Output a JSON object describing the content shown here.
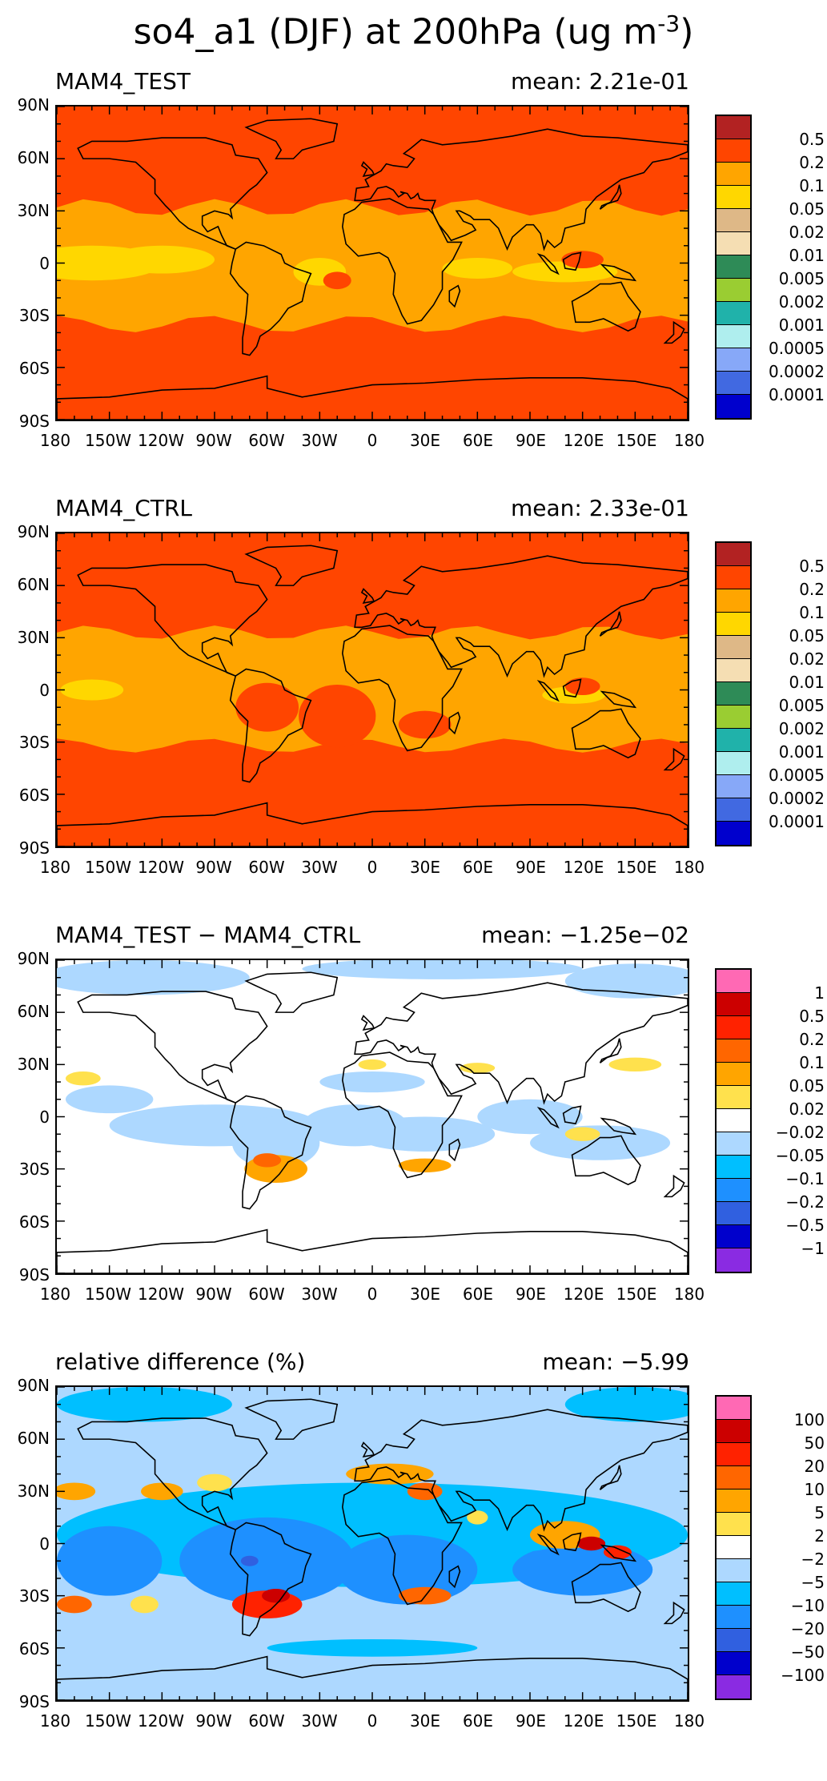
{
  "title_prefix": "so4_a1 (DJF) at 200hPa (ug m",
  "title_exponent": "-3",
  "title_suffix": ")",
  "chart_data": [
    {
      "type": "heatmap",
      "title": "MAM4_TEST",
      "mean_text": "mean: 2.21e-01",
      "ytick_labels": [
        "90N",
        "60N",
        "30N",
        "0",
        "30S",
        "60S",
        "90S"
      ],
      "xtick_labels": [
        "180",
        "150W",
        "120W",
        "90W",
        "60W",
        "30W",
        "0",
        "30E",
        "60E",
        "90E",
        "120E",
        "150E",
        "180"
      ],
      "ylim": [
        -90,
        90
      ],
      "xlim": [
        -180,
        180
      ],
      "colorbar_labels": [
        "0.5",
        "0.2",
        "0.1",
        "0.05",
        "0.02",
        "0.01",
        "0.005",
        "0.002",
        "0.001",
        "0.0005",
        "0.0002",
        "0.0001"
      ],
      "colorbar_colors": [
        "#b22222",
        "#ff4500",
        "#ffa500",
        "#ffd700",
        "#deb887",
        "#f5deb3",
        "#2e8b57",
        "#9acd32",
        "#20b2aa",
        "#afeeee",
        "#87a8f8",
        "#4169e1",
        "#0000cd"
      ]
    },
    {
      "type": "heatmap",
      "title": "MAM4_CTRL",
      "mean_text": "mean: 2.33e-01",
      "ytick_labels": [
        "90N",
        "60N",
        "30N",
        "0",
        "30S",
        "60S",
        "90S"
      ],
      "xtick_labels": [
        "180",
        "150W",
        "120W",
        "90W",
        "60W",
        "30W",
        "0",
        "30E",
        "60E",
        "90E",
        "120E",
        "150E",
        "180"
      ],
      "ylim": [
        -90,
        90
      ],
      "xlim": [
        -180,
        180
      ],
      "colorbar_labels": [
        "0.5",
        "0.2",
        "0.1",
        "0.05",
        "0.02",
        "0.01",
        "0.005",
        "0.002",
        "0.001",
        "0.0005",
        "0.0002",
        "0.0001"
      ],
      "colorbar_colors": [
        "#b22222",
        "#ff4500",
        "#ffa500",
        "#ffd700",
        "#deb887",
        "#f5deb3",
        "#2e8b57",
        "#9acd32",
        "#20b2aa",
        "#afeeee",
        "#87a8f8",
        "#4169e1",
        "#0000cd"
      ]
    },
    {
      "type": "heatmap",
      "title": "MAM4_TEST − MAM4_CTRL",
      "mean_text": "mean: −1.25e−02",
      "ytick_labels": [
        "90N",
        "60N",
        "30N",
        "0",
        "30S",
        "60S",
        "90S"
      ],
      "xtick_labels": [
        "180",
        "150W",
        "120W",
        "90W",
        "60W",
        "30W",
        "0",
        "30E",
        "60E",
        "90E",
        "120E",
        "150E",
        "180"
      ],
      "ylim": [
        -90,
        90
      ],
      "xlim": [
        -180,
        180
      ],
      "colorbar_labels": [
        "1",
        "0.5",
        "0.2",
        "0.1",
        "0.05",
        "0.02",
        "−0.02",
        "−0.05",
        "−0.1",
        "−0.2",
        "−0.5",
        "−1"
      ],
      "colorbar_colors": [
        "#ff69b4",
        "#cc0000",
        "#ff2200",
        "#ff6600",
        "#ffa500",
        "#ffe14d",
        "#ffffff",
        "#add8ff",
        "#00bfff",
        "#1e90ff",
        "#3060e0",
        "#0000cc",
        "#8a2be2"
      ]
    },
    {
      "type": "heatmap",
      "title": "relative difference (%)",
      "mean_text": "mean: −5.99",
      "ytick_labels": [
        "90N",
        "60N",
        "30N",
        "0",
        "30S",
        "60S",
        "90S"
      ],
      "xtick_labels": [
        "180",
        "150W",
        "120W",
        "90W",
        "60W",
        "30W",
        "0",
        "30E",
        "60E",
        "90E",
        "120E",
        "150E",
        "180"
      ],
      "ylim": [
        -90,
        90
      ],
      "xlim": [
        -180,
        180
      ],
      "colorbar_labels": [
        "100",
        "50",
        "20",
        "10",
        "5",
        "2",
        "−2",
        "−5",
        "−10",
        "−20",
        "−50",
        "−100"
      ],
      "colorbar_colors": [
        "#ff69b4",
        "#cc0000",
        "#ff2200",
        "#ff6600",
        "#ffa500",
        "#ffe14d",
        "#ffffff",
        "#add8ff",
        "#00bfff",
        "#1e90ff",
        "#3060e0",
        "#0000cc",
        "#8a2be2"
      ]
    }
  ]
}
